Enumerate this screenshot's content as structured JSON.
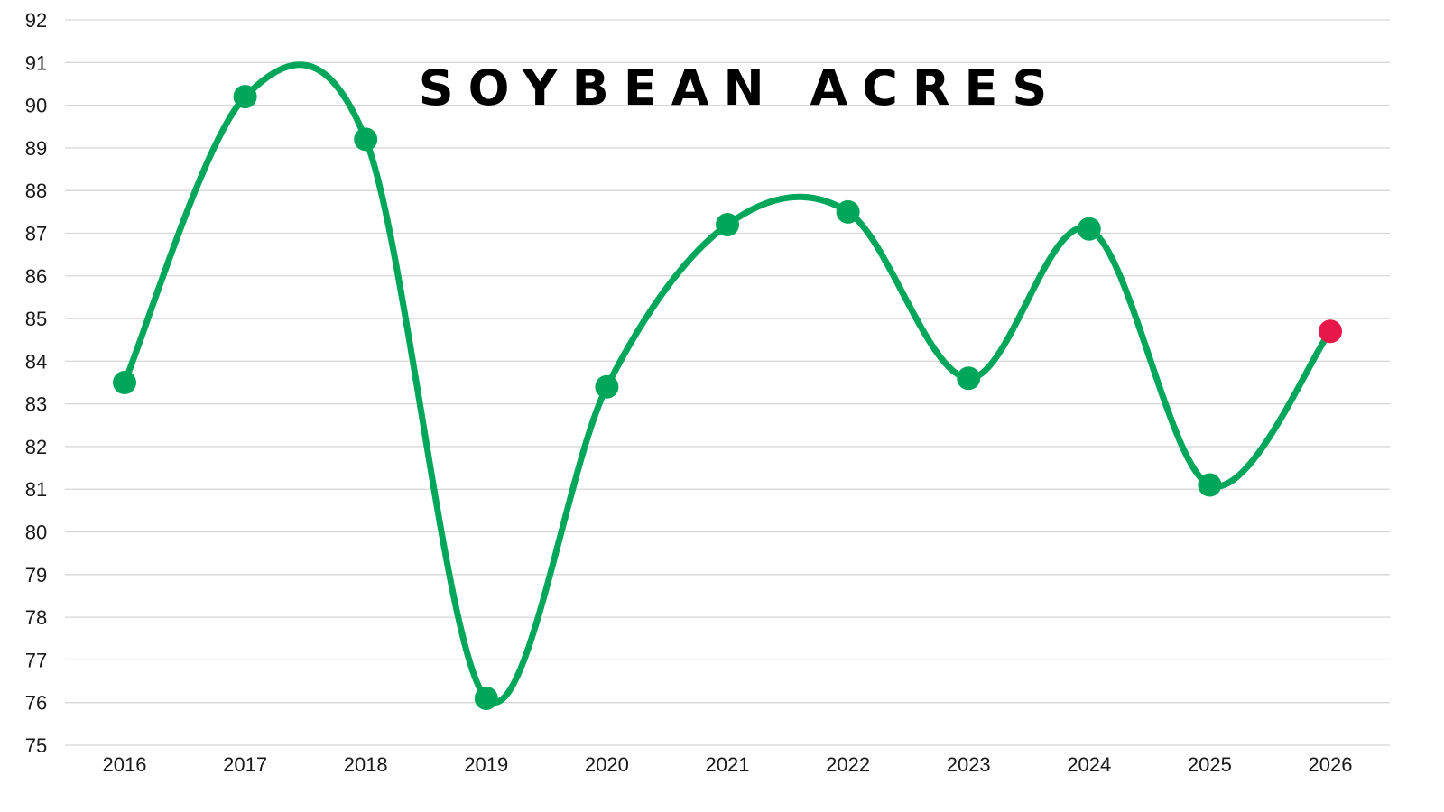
{
  "chart_data": {
    "type": "line",
    "title": "SOYBEAN ACRES",
    "xlabel": "",
    "ylabel": "",
    "categories": [
      "2016",
      "2017",
      "2018",
      "2019",
      "2020",
      "2021",
      "2022",
      "2023",
      "2024",
      "2025",
      "2026"
    ],
    "series": [
      {
        "values": [
          83.5,
          90.2,
          89.2,
          76.1,
          83.4,
          87.2,
          87.5,
          83.6,
          87.1,
          81.1,
          84.7
        ]
      }
    ],
    "ylim": [
      75,
      92
    ],
    "yticks": [
      75,
      76,
      77,
      78,
      79,
      80,
      81,
      82,
      83,
      84,
      85,
      86,
      87,
      88,
      89,
      90,
      91,
      92
    ],
    "grid": true,
    "smooth": true,
    "line_color": "#00a65a",
    "marker_color": "#00a65a",
    "highlight_index": 10,
    "highlight_color": "#e8174a"
  }
}
